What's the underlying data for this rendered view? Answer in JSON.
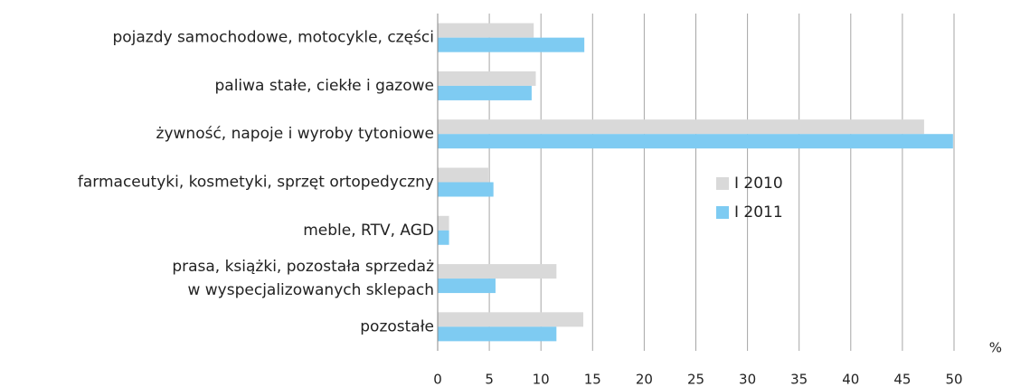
{
  "chart_data": {
    "type": "barh",
    "categories": [
      "pojazdy samochodowe, motocykle, części",
      "paliwa stałe, ciekłe i gazowe",
      "żywność, napoje i wyroby tytoniowe",
      "farmaceutyki, kosmetyki, sprzęt ortopedyczny",
      "meble, RTV, AGD",
      [
        "prasa, książki, pozostała sprzedaż",
        "w wyspecjalizowanych sklepach"
      ],
      "pozostałe"
    ],
    "series": [
      {
        "name": "I 2010",
        "color": "#d9d9d9",
        "values": [
          9.3,
          9.5,
          47.1,
          4.9,
          1.1,
          11.5,
          14.1
        ]
      },
      {
        "name": "I 2011",
        "color": "#7ecbf2",
        "values": [
          14.2,
          9.1,
          49.9,
          5.4,
          1.1,
          5.6,
          11.5
        ]
      }
    ],
    "xlabel": "%",
    "xlim": [
      0,
      50
    ],
    "xticks": [
      0,
      5,
      10,
      15,
      20,
      25,
      30,
      35,
      40,
      45,
      50
    ],
    "grid": true
  }
}
